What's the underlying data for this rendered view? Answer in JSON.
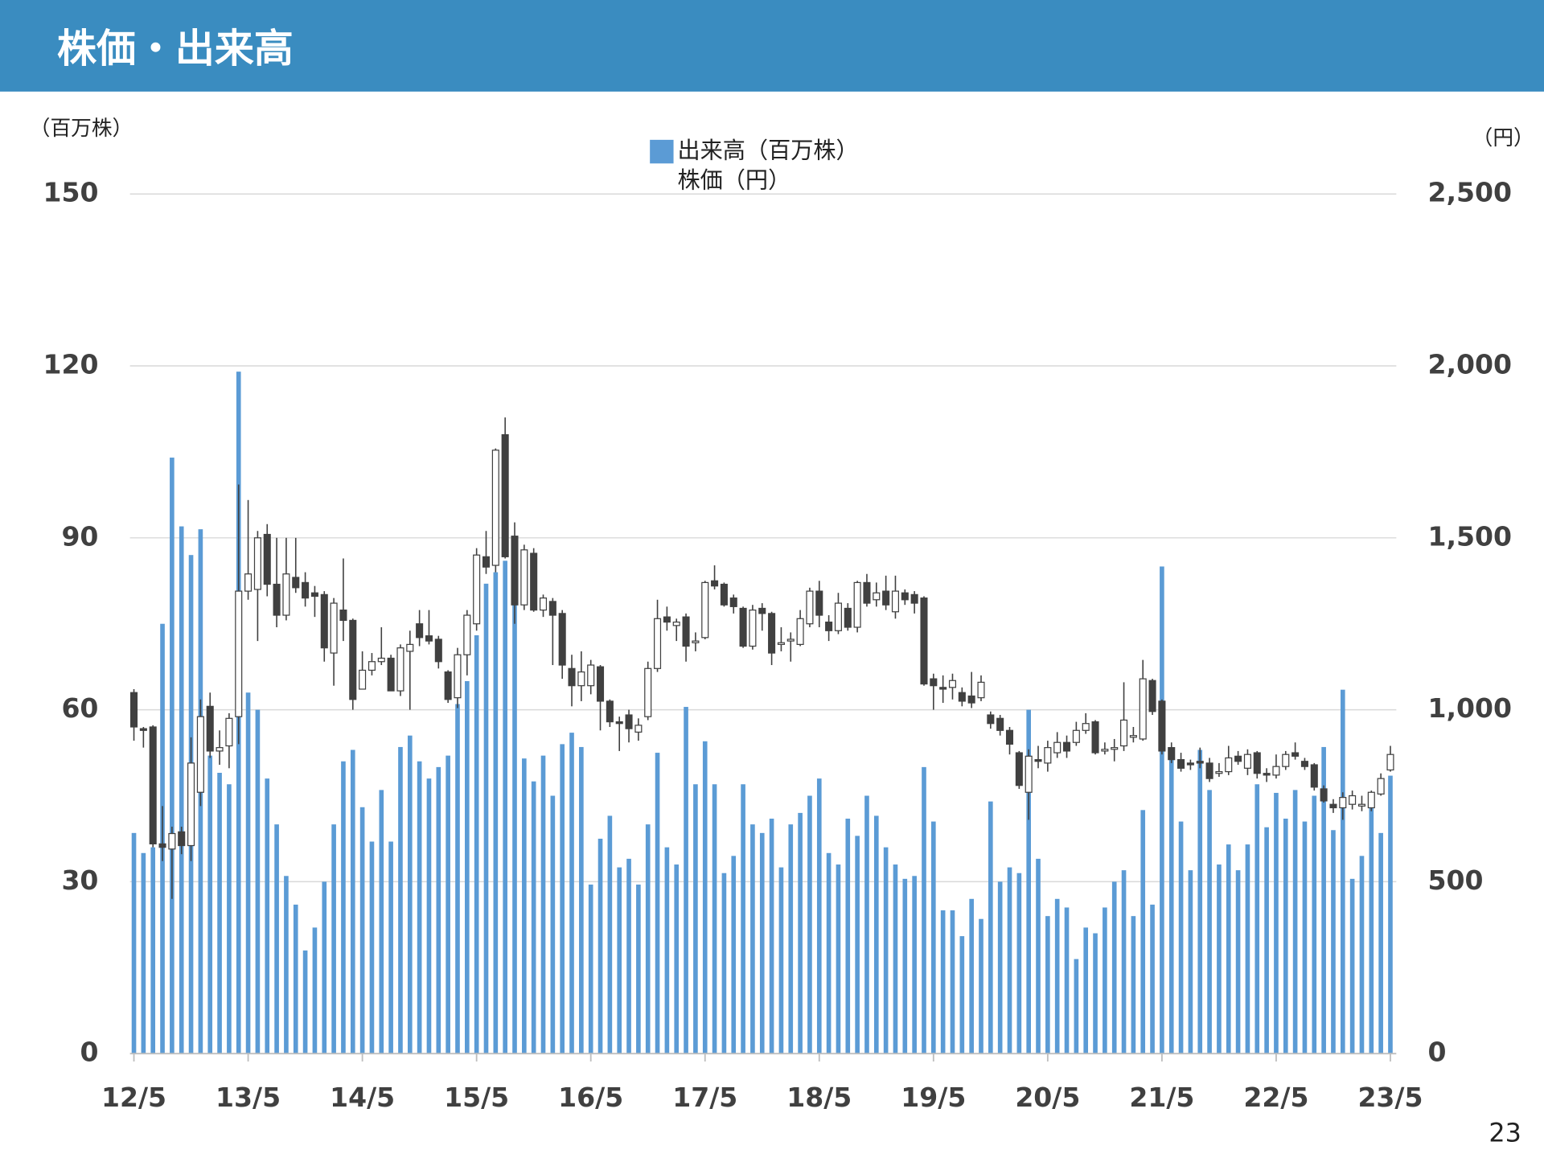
{
  "header": {
    "title": "株価・出来高"
  },
  "page_number": "23",
  "chart_data": {
    "type": "combo",
    "y_label": "（百万株）",
    "y2_label": "（円）",
    "categories": [
      "12/5",
      null,
      null,
      null,
      null,
      null,
      null,
      null,
      null,
      null,
      null,
      null,
      "13/5",
      null,
      null,
      null,
      null,
      null,
      null,
      null,
      null,
      null,
      null,
      null,
      "14/5",
      null,
      null,
      null,
      null,
      null,
      null,
      null,
      null,
      null,
      null,
      null,
      "15/5",
      null,
      null,
      null,
      null,
      null,
      null,
      null,
      null,
      null,
      null,
      null,
      "16/5",
      null,
      null,
      null,
      null,
      null,
      null,
      null,
      null,
      null,
      null,
      null,
      "17/5",
      null,
      null,
      null,
      null,
      null,
      null,
      null,
      null,
      null,
      null,
      null,
      "18/5",
      null,
      null,
      null,
      null,
      null,
      null,
      null,
      null,
      null,
      null,
      null,
      "19/5",
      null,
      null,
      null,
      null,
      null,
      null,
      null,
      null,
      null,
      null,
      null,
      "20/5",
      null,
      null,
      null,
      null,
      null,
      null,
      null,
      null,
      null,
      null,
      null,
      "21/5",
      null,
      null,
      null,
      null,
      null,
      null,
      null,
      null,
      null,
      null,
      null,
      "22/5",
      null,
      null,
      null,
      null,
      null,
      null,
      null,
      null,
      null,
      null,
      null,
      "23/5"
    ],
    "ylim": [
      0,
      150
    ],
    "yticks": [
      0,
      30,
      60,
      90,
      120,
      150
    ],
    "y2lim": [
      0,
      2500
    ],
    "y2ticks": [
      0,
      500,
      {
        "value": 1000,
        "label": "1,000"
      },
      {
        "value": 1500,
        "label": "1,500"
      },
      {
        "value": 2000,
        "label": "2,000"
      },
      {
        "value": 2500,
        "label": "2,500"
      }
    ],
    "grid": true,
    "legend": "top",
    "series": [
      {
        "name": "出来高（百万株）",
        "type": "bar",
        "color": "#5b9bd5",
        "values": [
          38.5,
          35,
          36,
          75,
          104,
          92,
          87,
          91.5,
          52,
          49,
          47,
          119,
          63,
          60,
          48,
          40,
          31,
          26,
          18,
          22,
          30,
          40,
          51,
          53,
          43,
          37,
          46,
          37,
          53.5,
          55.5,
          51,
          48,
          50,
          52,
          61,
          65,
          73,
          82,
          84,
          86,
          80,
          51.5,
          47.5,
          52,
          45,
          54,
          56,
          53.5,
          29.5,
          37.5,
          41.5,
          32.5,
          34,
          29.5,
          40,
          52.5,
          36,
          33,
          60.5,
          47,
          54.5,
          47,
          31.5,
          34.5,
          47,
          40,
          38.5,
          41,
          32.5,
          40,
          42,
          45,
          48,
          35,
          33,
          41,
          38,
          45,
          41.5,
          36,
          33,
          30.5,
          31,
          50,
          40.5,
          25,
          25,
          20.5,
          27,
          23.5,
          44,
          30,
          32.5,
          31.5,
          60,
          34,
          24,
          27,
          25.5,
          16.5,
          22,
          21,
          25.5,
          30,
          32,
          24,
          42.5,
          26,
          85,
          52,
          40.5,
          32,
          53,
          46,
          33,
          36.5,
          32,
          36.5,
          47,
          39.5,
          45.5,
          41,
          46,
          40.5,
          45,
          53.5,
          39,
          63.5,
          30.5,
          34.5,
          43.5,
          38.5,
          48.5
        ]
      },
      {
        "name": "株価（円）",
        "type": "candlestick",
        "axis": "y2",
        "up_color": "#ffffff",
        "down_color": "#404040",
        "color": "#404040",
        "open": [
          1050,
          945,
          950,
          610,
          595,
          645,
          605,
          760,
          1010,
          880,
          895,
          980,
          1345,
          1350,
          1510,
          1365,
          1275,
          1385,
          1370,
          1340,
          1335,
          1165,
          1290,
          1260,
          1060,
          1115,
          1140,
          1150,
          1055,
          1170,
          1250,
          1215,
          1205,
          1110,
          1035,
          1160,
          1250,
          1445,
          1420,
          1800,
          1505,
          1305,
          1455,
          1290,
          1315,
          1280,
          1120,
          1070,
          1070,
          1125,
          1025,
          965,
          985,
          935,
          980,
          1120,
          1270,
          1245,
          1270,
          1195,
          1210,
          1375,
          1365,
          1325,
          1295,
          1185,
          1295,
          1280,
          1190,
          1200,
          1190,
          1250,
          1345,
          1255,
          1230,
          1295,
          1240,
          1370,
          1320,
          1345,
          1285,
          1340,
          1335,
          1325,
          1090,
          1065,
          1065,
          1050,
          1040,
          1035,
          985,
          975,
          940,
          875,
          760,
          855,
          845,
          875,
          905,
          905,
          940,
          965,
          880,
          885,
          895,
          920,
          915,
          1085,
          1025,
          890,
          855,
          845,
          850,
          845,
          815,
          820,
          865,
          830,
          875,
          815,
          810,
          835,
          875,
          850,
          840,
          770,
          725,
          715,
          725,
          720,
          715,
          755,
          825
        ],
        "high": [
          1060,
          950,
          955,
          720,
          660,
          660,
          920,
          1030,
          1050,
          940,
          990,
          1655,
          1610,
          1520,
          1540,
          1500,
          1500,
          1500,
          1400,
          1360,
          1345,
          1325,
          1440,
          1265,
          1170,
          1165,
          1240,
          1160,
          1190,
          1230,
          1290,
          1290,
          1215,
          1115,
          1180,
          1290,
          1470,
          1520,
          1760,
          1850,
          1545,
          1480,
          1470,
          1335,
          1325,
          1290,
          1160,
          1170,
          1145,
          1130,
          1030,
          980,
          1000,
          975,
          1140,
          1320,
          1300,
          1265,
          1280,
          1225,
          1375,
          1420,
          1370,
          1335,
          1300,
          1305,
          1310,
          1285,
          1240,
          1225,
          1290,
          1355,
          1375,
          1275,
          1340,
          1310,
          1375,
          1395,
          1370,
          1390,
          1390,
          1350,
          1345,
          1330,
          1105,
          1100,
          1105,
          1065,
          1110,
          1100,
          995,
          985,
          950,
          880,
          885,
          895,
          910,
          935,
          925,
          965,
          990,
          970,
          905,
          915,
          1080,
          950,
          1145,
          1090,
          1030,
          905,
          875,
          855,
          890,
          860,
          845,
          895,
          880,
          885,
          880,
          830,
          870,
          880,
          905,
          860,
          845,
          780,
          740,
          760,
          765,
          750,
          765,
          815,
          895
        ],
        "low": [
          910,
          890,
          600,
          560,
          450,
          580,
          560,
          720,
          860,
          840,
          830,
          900,
          1320,
          1200,
          1330,
          1240,
          1260,
          1340,
          1300,
          1270,
          1140,
          1070,
          1200,
          1000,
          1060,
          1100,
          1130,
          1055,
          1040,
          1000,
          1185,
          1190,
          1120,
          1020,
          1005,
          1100,
          1230,
          1395,
          1400,
          1440,
          1250,
          1290,
          1285,
          1270,
          1130,
          1090,
          1010,
          1025,
          1045,
          940,
          950,
          880,
          905,
          910,
          970,
          1110,
          1230,
          1200,
          1140,
          1170,
          1205,
          1350,
          1300,
          1280,
          1180,
          1175,
          1230,
          1130,
          1170,
          1140,
          1185,
          1240,
          1240,
          1200,
          1220,
          1230,
          1225,
          1300,
          1300,
          1290,
          1265,
          1305,
          1280,
          1070,
          1000,
          1020,
          1030,
          1010,
          1005,
          1025,
          945,
          925,
          870,
          770,
          680,
          830,
          820,
          860,
          860,
          895,
          930,
          870,
          870,
          850,
          880,
          905,
          910,
          985,
          870,
          845,
          820,
          825,
          830,
          790,
          805,
          810,
          840,
          810,
          800,
          790,
          800,
          825,
          855,
          825,
          765,
          730,
          700,
          680,
          710,
          705,
          705,
          750,
          820
        ],
        "close": [
          950,
          940,
          610,
          600,
          640,
          605,
          845,
          980,
          880,
          890,
          975,
          1345,
          1395,
          1500,
          1365,
          1275,
          1395,
          1355,
          1325,
          1330,
          1180,
          1310,
          1260,
          1030,
          1115,
          1140,
          1150,
          1055,
          1180,
          1190,
          1210,
          1200,
          1140,
          1030,
          1160,
          1275,
          1450,
          1415,
          1755,
          1445,
          1305,
          1465,
          1290,
          1325,
          1275,
          1130,
          1070,
          1110,
          1130,
          1025,
          965,
          960,
          945,
          955,
          1120,
          1265,
          1255,
          1255,
          1185,
          1200,
          1370,
          1360,
          1305,
          1300,
          1185,
          1290,
          1280,
          1165,
          1195,
          1205,
          1265,
          1345,
          1275,
          1230,
          1310,
          1240,
          1370,
          1310,
          1340,
          1305,
          1345,
          1320,
          1310,
          1075,
          1070,
          1060,
          1085,
          1025,
          1020,
          1080,
          960,
          940,
          900,
          780,
          865,
          850,
          890,
          905,
          880,
          940,
          960,
          875,
          885,
          890,
          970,
          925,
          1090,
          995,
          880,
          855,
          830,
          840,
          845,
          800,
          820,
          860,
          850,
          870,
          815,
          810,
          835,
          870,
          865,
          835,
          775,
          735,
          715,
          745,
          750,
          725,
          760,
          800,
          870
        ]
      }
    ]
  }
}
